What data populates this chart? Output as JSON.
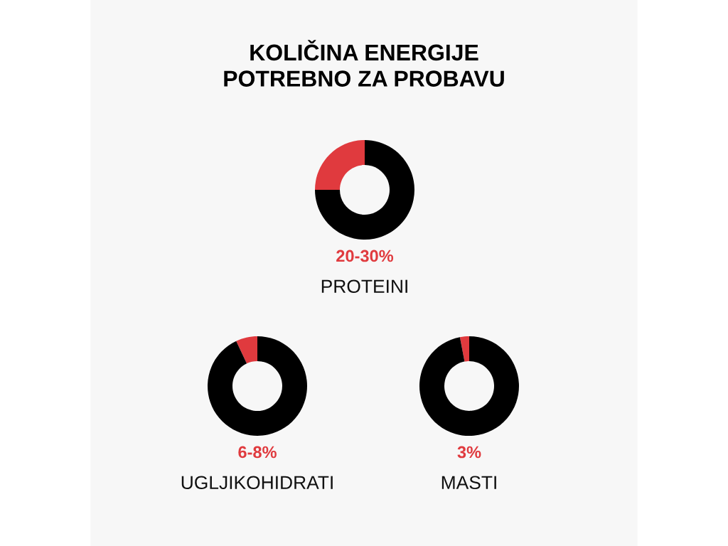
{
  "chart_data": [
    {
      "type": "donut",
      "title": "KOLIČINA ENERGIJE\nPOTREBNO ZA PROBAVU",
      "categories": [
        null,
        null
      ],
      "values": [
        25,
        75
      ],
      "colors": [
        "#e03a3e",
        "#000000"
      ],
      "annotations": [
        "20-30%"
      ],
      "xlabel": "PROTEINI"
    },
    {
      "type": "donut",
      "categories": [
        null,
        null
      ],
      "values": [
        7,
        93
      ],
      "colors": [
        "#e03a3e",
        "#000000"
      ],
      "annotations": [
        "6-8%"
      ],
      "xlabel": "UGLJIKOHIDRATI"
    },
    {
      "type": "donut",
      "categories": [
        null,
        null
      ],
      "values": [
        3,
        97
      ],
      "colors": [
        "#e03a3e",
        "#000000"
      ],
      "annotations": [
        "3%"
      ],
      "xlabel": "MASTI"
    }
  ]
}
